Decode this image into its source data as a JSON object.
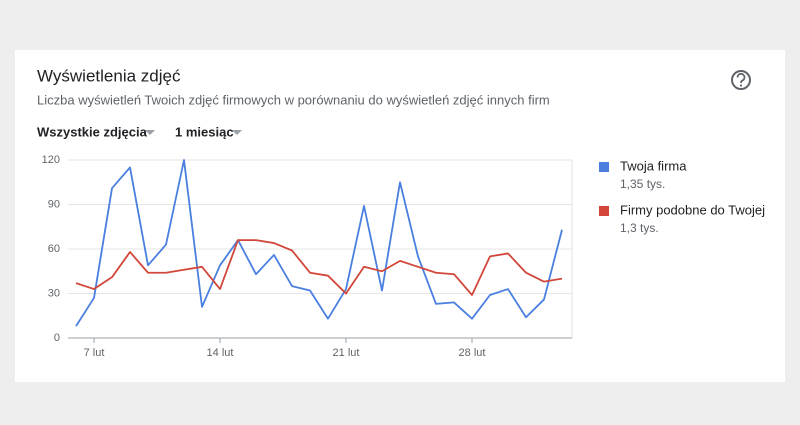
{
  "chart_data": {
    "type": "line",
    "title": "Wyświetlenia zdjęć",
    "subtitle": "Liczba wyświetleń Twoich zdjęć firmowych w porównaniu do wyświetleń zdjęć innych firm",
    "filters": [
      "Wszystkie zdjęcia",
      "1 miesiąc"
    ],
    "categories": [
      null,
      "7 lut",
      null,
      null,
      null,
      null,
      null,
      null,
      "14 lut",
      null,
      null,
      null,
      null,
      null,
      null,
      "21 lut",
      null,
      null,
      null,
      null,
      null,
      null,
      "28 lut",
      null,
      null,
      null,
      null,
      null
    ],
    "series": [
      {
        "name": "Twoja firma",
        "total": "1,35 tys.",
        "color": "#4a7fe0",
        "values": [
          8,
          27,
          101,
          115,
          49,
          63,
          120,
          21,
          49,
          66,
          43,
          56,
          35,
          32,
          13,
          33,
          89,
          32,
          105,
          55,
          23,
          24,
          13,
          29,
          33,
          14,
          26,
          73
        ]
      },
      {
        "name": "Firmy podobne do Twojej",
        "total": "1,3 tys.",
        "color": "#d2473a",
        "values": [
          37,
          33,
          41,
          58,
          44,
          44,
          46,
          48,
          33,
          66,
          66,
          64,
          59,
          44,
          42,
          30,
          48,
          45,
          52,
          48,
          44,
          43,
          29,
          55,
          57,
          44,
          38,
          40
        ]
      }
    ],
    "ylim": [
      0,
      120
    ],
    "yticks": [
      0,
      30,
      60,
      90,
      120
    ],
    "grid": true
  }
}
